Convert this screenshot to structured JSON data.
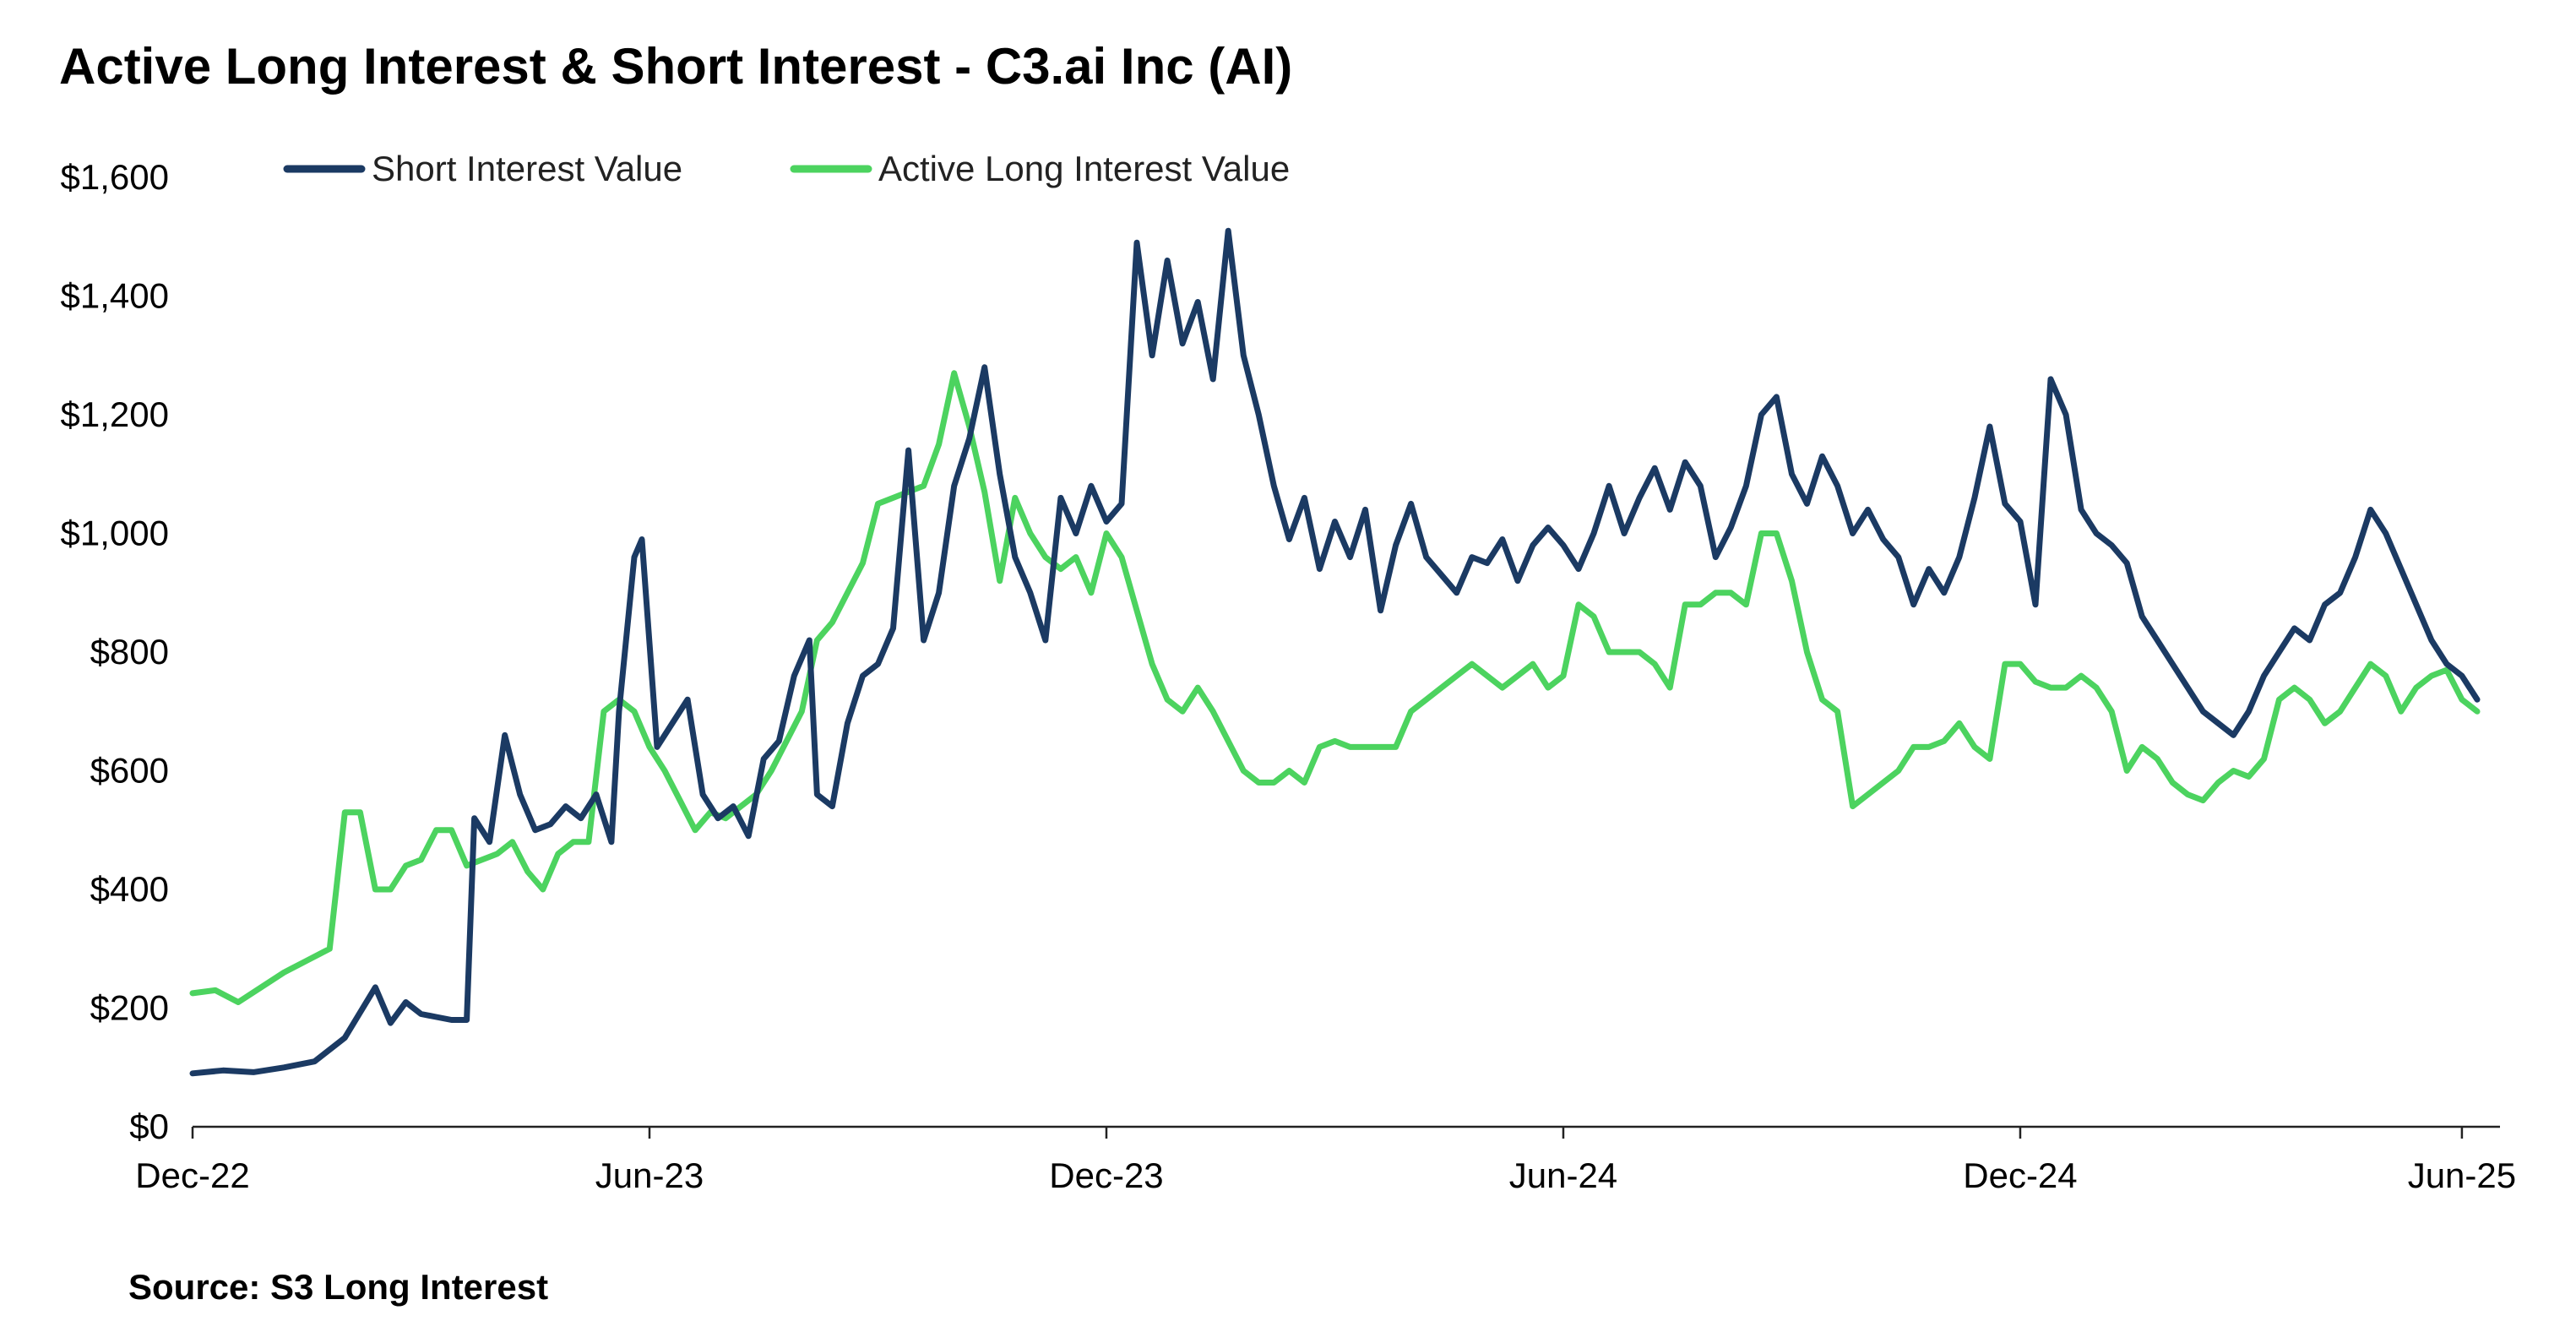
{
  "chart_data": {
    "type": "line",
    "title": "Active Long Interest & Short Interest - C3.ai Inc (AI)",
    "source": "Source: S3 Long Interest",
    "xlabel": "",
    "ylabel": "",
    "ylim": [
      0,
      1600
    ],
    "yticks": [
      0,
      200,
      400,
      600,
      800,
      1000,
      1200,
      1400,
      1600
    ],
    "ytick_labels": [
      "$0",
      "$200",
      "$400",
      "$600",
      "$800",
      "$1,000",
      "$1,200",
      "$1,400",
      "$1,600"
    ],
    "xlim": [
      0,
      30.3
    ],
    "xticks": [
      0,
      6,
      12,
      18,
      24,
      29.8
    ],
    "xtick_labels": [
      "Dec-22",
      "Jun-23",
      "Dec-23",
      "Jun-24",
      "Dec-24",
      "Jun-25"
    ],
    "x_unit": "months since Dec-22",
    "grid": false,
    "legend_position": "top-left",
    "series": [
      {
        "name": "Short Interest Value",
        "color": "#1b3a63",
        "points": [
          [
            0,
            90
          ],
          [
            0.4,
            95
          ],
          [
            0.8,
            92
          ],
          [
            1.2,
            100
          ],
          [
            1.6,
            110
          ],
          [
            2.0,
            150
          ],
          [
            2.4,
            235
          ],
          [
            2.6,
            175
          ],
          [
            2.8,
            210
          ],
          [
            3.0,
            190
          ],
          [
            3.2,
            185
          ],
          [
            3.4,
            180
          ],
          [
            3.6,
            180
          ],
          [
            3.7,
            520
          ],
          [
            3.9,
            480
          ],
          [
            4.1,
            660
          ],
          [
            4.3,
            560
          ],
          [
            4.5,
            500
          ],
          [
            4.7,
            510
          ],
          [
            4.9,
            540
          ],
          [
            5.1,
            520
          ],
          [
            5.3,
            560
          ],
          [
            5.5,
            480
          ],
          [
            5.6,
            700
          ],
          [
            5.8,
            960
          ],
          [
            5.9,
            990
          ],
          [
            6.1,
            640
          ],
          [
            6.3,
            680
          ],
          [
            6.5,
            720
          ],
          [
            6.7,
            560
          ],
          [
            6.9,
            520
          ],
          [
            7.1,
            540
          ],
          [
            7.3,
            490
          ],
          [
            7.5,
            620
          ],
          [
            7.7,
            650
          ],
          [
            7.9,
            760
          ],
          [
            8.1,
            820
          ],
          [
            8.2,
            560
          ],
          [
            8.4,
            540
          ],
          [
            8.6,
            680
          ],
          [
            8.8,
            760
          ],
          [
            9.0,
            780
          ],
          [
            9.2,
            840
          ],
          [
            9.4,
            1140
          ],
          [
            9.6,
            820
          ],
          [
            9.8,
            900
          ],
          [
            10.0,
            1080
          ],
          [
            10.2,
            1160
          ],
          [
            10.4,
            1280
          ],
          [
            10.6,
            1100
          ],
          [
            10.8,
            960
          ],
          [
            11.0,
            900
          ],
          [
            11.2,
            820
          ],
          [
            11.4,
            1060
          ],
          [
            11.6,
            1000
          ],
          [
            11.8,
            1080
          ],
          [
            12.0,
            1020
          ],
          [
            12.2,
            1050
          ],
          [
            12.4,
            1490
          ],
          [
            12.6,
            1300
          ],
          [
            12.8,
            1460
          ],
          [
            13.0,
            1320
          ],
          [
            13.2,
            1390
          ],
          [
            13.4,
            1260
          ],
          [
            13.6,
            1510
          ],
          [
            13.8,
            1300
          ],
          [
            14.0,
            1200
          ],
          [
            14.2,
            1080
          ],
          [
            14.4,
            990
          ],
          [
            14.6,
            1060
          ],
          [
            14.8,
            940
          ],
          [
            15.0,
            1020
          ],
          [
            15.2,
            960
          ],
          [
            15.4,
            1040
          ],
          [
            15.6,
            870
          ],
          [
            15.8,
            980
          ],
          [
            16.0,
            1050
          ],
          [
            16.2,
            960
          ],
          [
            16.4,
            930
          ],
          [
            16.6,
            900
          ],
          [
            16.8,
            960
          ],
          [
            17.0,
            950
          ],
          [
            17.2,
            990
          ],
          [
            17.4,
            920
          ],
          [
            17.6,
            980
          ],
          [
            17.8,
            1010
          ],
          [
            18.0,
            980
          ],
          [
            18.2,
            940
          ],
          [
            18.4,
            1000
          ],
          [
            18.6,
            1080
          ],
          [
            18.8,
            1000
          ],
          [
            19.0,
            1060
          ],
          [
            19.2,
            1110
          ],
          [
            19.4,
            1040
          ],
          [
            19.6,
            1120
          ],
          [
            19.8,
            1080
          ],
          [
            20.0,
            960
          ],
          [
            20.2,
            1010
          ],
          [
            20.4,
            1080
          ],
          [
            20.6,
            1200
          ],
          [
            20.8,
            1230
          ],
          [
            21.0,
            1100
          ],
          [
            21.2,
            1050
          ],
          [
            21.4,
            1130
          ],
          [
            21.6,
            1080
          ],
          [
            21.8,
            1000
          ],
          [
            22.0,
            1040
          ],
          [
            22.2,
            990
          ],
          [
            22.4,
            960
          ],
          [
            22.6,
            880
          ],
          [
            22.8,
            940
          ],
          [
            23.0,
            900
          ],
          [
            23.2,
            960
          ],
          [
            23.4,
            1060
          ],
          [
            23.6,
            1180
          ],
          [
            23.8,
            1050
          ],
          [
            24.0,
            1020
          ],
          [
            24.2,
            880
          ],
          [
            24.4,
            1260
          ],
          [
            24.6,
            1200
          ],
          [
            24.8,
            1040
          ],
          [
            25.0,
            1000
          ],
          [
            25.2,
            980
          ],
          [
            25.4,
            950
          ],
          [
            25.6,
            860
          ],
          [
            25.8,
            820
          ],
          [
            26.0,
            780
          ],
          [
            26.2,
            740
          ],
          [
            26.4,
            700
          ],
          [
            26.6,
            680
          ],
          [
            26.8,
            660
          ],
          [
            27.0,
            700
          ],
          [
            27.2,
            760
          ],
          [
            27.4,
            800
          ],
          [
            27.6,
            840
          ],
          [
            27.8,
            820
          ],
          [
            28.0,
            880
          ],
          [
            28.2,
            900
          ],
          [
            28.4,
            960
          ],
          [
            28.6,
            1040
          ],
          [
            28.8,
            1000
          ],
          [
            29.0,
            940
          ],
          [
            29.2,
            880
          ],
          [
            29.4,
            820
          ],
          [
            29.6,
            780
          ],
          [
            29.8,
            760
          ],
          [
            30.0,
            720
          ]
        ]
      },
      {
        "name": "Active Long Interest Value",
        "color": "#4cd35f",
        "points": [
          [
            0,
            225
          ],
          [
            0.3,
            230
          ],
          [
            0.6,
            210
          ],
          [
            0.9,
            235
          ],
          [
            1.2,
            260
          ],
          [
            1.5,
            280
          ],
          [
            1.8,
            300
          ],
          [
            2.0,
            530
          ],
          [
            2.2,
            530
          ],
          [
            2.4,
            400
          ],
          [
            2.6,
            400
          ],
          [
            2.8,
            440
          ],
          [
            3.0,
            450
          ],
          [
            3.2,
            500
          ],
          [
            3.4,
            500
          ],
          [
            3.6,
            440
          ],
          [
            3.8,
            450
          ],
          [
            4.0,
            460
          ],
          [
            4.2,
            480
          ],
          [
            4.4,
            430
          ],
          [
            4.6,
            400
          ],
          [
            4.8,
            460
          ],
          [
            5.0,
            480
          ],
          [
            5.2,
            480
          ],
          [
            5.4,
            700
          ],
          [
            5.6,
            720
          ],
          [
            5.8,
            700
          ],
          [
            6.0,
            640
          ],
          [
            6.2,
            600
          ],
          [
            6.4,
            550
          ],
          [
            6.6,
            500
          ],
          [
            6.8,
            530
          ],
          [
            7.0,
            520
          ],
          [
            7.2,
            540
          ],
          [
            7.4,
            560
          ],
          [
            7.6,
            600
          ],
          [
            7.8,
            650
          ],
          [
            8.0,
            700
          ],
          [
            8.2,
            820
          ],
          [
            8.4,
            850
          ],
          [
            8.6,
            900
          ],
          [
            8.8,
            950
          ],
          [
            9.0,
            1050
          ],
          [
            9.2,
            1060
          ],
          [
            9.4,
            1070
          ],
          [
            9.6,
            1080
          ],
          [
            9.8,
            1150
          ],
          [
            10.0,
            1270
          ],
          [
            10.2,
            1180
          ],
          [
            10.4,
            1070
          ],
          [
            10.6,
            920
          ],
          [
            10.8,
            1060
          ],
          [
            11.0,
            1000
          ],
          [
            11.2,
            960
          ],
          [
            11.4,
            940
          ],
          [
            11.6,
            960
          ],
          [
            11.8,
            900
          ],
          [
            12.0,
            1000
          ],
          [
            12.2,
            960
          ],
          [
            12.4,
            870
          ],
          [
            12.6,
            780
          ],
          [
            12.8,
            720
          ],
          [
            13.0,
            700
          ],
          [
            13.2,
            740
          ],
          [
            13.4,
            700
          ],
          [
            13.6,
            650
          ],
          [
            13.8,
            600
          ],
          [
            14.0,
            580
          ],
          [
            14.2,
            580
          ],
          [
            14.4,
            600
          ],
          [
            14.6,
            580
          ],
          [
            14.8,
            640
          ],
          [
            15.0,
            650
          ],
          [
            15.2,
            640
          ],
          [
            15.4,
            640
          ],
          [
            15.6,
            640
          ],
          [
            15.8,
            640
          ],
          [
            16.0,
            700
          ],
          [
            16.2,
            720
          ],
          [
            16.4,
            740
          ],
          [
            16.6,
            760
          ],
          [
            16.8,
            780
          ],
          [
            17.0,
            760
          ],
          [
            17.2,
            740
          ],
          [
            17.4,
            760
          ],
          [
            17.6,
            780
          ],
          [
            17.8,
            740
          ],
          [
            18.0,
            760
          ],
          [
            18.2,
            880
          ],
          [
            18.4,
            860
          ],
          [
            18.6,
            800
          ],
          [
            18.8,
            800
          ],
          [
            19.0,
            800
          ],
          [
            19.2,
            780
          ],
          [
            19.4,
            740
          ],
          [
            19.6,
            880
          ],
          [
            19.8,
            880
          ],
          [
            20.0,
            900
          ],
          [
            20.2,
            900
          ],
          [
            20.4,
            880
          ],
          [
            20.6,
            1000
          ],
          [
            20.8,
            1000
          ],
          [
            21.0,
            920
          ],
          [
            21.2,
            800
          ],
          [
            21.4,
            720
          ],
          [
            21.6,
            700
          ],
          [
            21.8,
            540
          ],
          [
            22.0,
            560
          ],
          [
            22.2,
            580
          ],
          [
            22.4,
            600
          ],
          [
            22.6,
            640
          ],
          [
            22.8,
            640
          ],
          [
            23.0,
            650
          ],
          [
            23.2,
            680
          ],
          [
            23.4,
            640
          ],
          [
            23.6,
            620
          ],
          [
            23.8,
            780
          ],
          [
            24.0,
            780
          ],
          [
            24.2,
            750
          ],
          [
            24.4,
            740
          ],
          [
            24.6,
            740
          ],
          [
            24.8,
            760
          ],
          [
            25.0,
            740
          ],
          [
            25.2,
            700
          ],
          [
            25.4,
            600
          ],
          [
            25.6,
            640
          ],
          [
            25.8,
            620
          ],
          [
            26.0,
            580
          ],
          [
            26.2,
            560
          ],
          [
            26.4,
            550
          ],
          [
            26.6,
            580
          ],
          [
            26.8,
            600
          ],
          [
            27.0,
            590
          ],
          [
            27.2,
            620
          ],
          [
            27.4,
            720
          ],
          [
            27.6,
            740
          ],
          [
            27.8,
            720
          ],
          [
            28.0,
            680
          ],
          [
            28.2,
            700
          ],
          [
            28.4,
            740
          ],
          [
            28.6,
            780
          ],
          [
            28.8,
            760
          ],
          [
            29.0,
            700
          ],
          [
            29.2,
            740
          ],
          [
            29.4,
            760
          ],
          [
            29.6,
            770
          ],
          [
            29.8,
            720
          ],
          [
            30.0,
            700
          ]
        ]
      }
    ]
  }
}
